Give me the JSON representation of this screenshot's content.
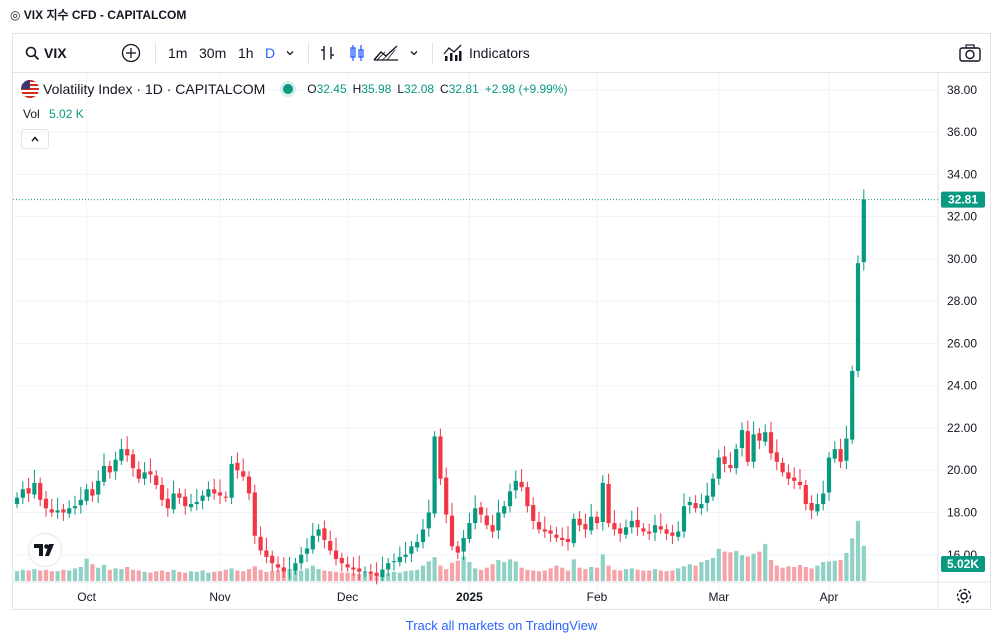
{
  "page": {
    "title": "◎ VIX 지수 CFD - CAPITALCOM",
    "footer_link": "Track all markets on TradingView"
  },
  "toolbar": {
    "search_value": "VIX",
    "intervals": [
      "1m",
      "30m",
      "1h",
      "D"
    ],
    "active_interval": "D",
    "indicators_label": "Indicators"
  },
  "legend": {
    "name": "Volatility Index · 1D · CAPITALCOM",
    "o_label": "O",
    "o_value": "32.45",
    "h_label": "H",
    "h_value": "35.98",
    "l_label": "L",
    "l_value": "32.08",
    "c_label": "C",
    "c_value": "32.81",
    "change": "+2.98 (+9.99%)",
    "vol_label": "Vol",
    "vol_value": "5.02 K"
  },
  "colors": {
    "up": "#089981",
    "down": "#f23645",
    "vol_up": "#8fd1c4",
    "vol_down": "#f5a3a8",
    "accent": "#2962ff"
  },
  "chart_data": {
    "type": "candlestick",
    "y_ticks": [
      "16.00",
      "18.00",
      "20.00",
      "22.00",
      "24.00",
      "26.00",
      "28.00",
      "30.00",
      "32.00",
      "34.00",
      "36.00",
      "38.00"
    ],
    "ylim": [
      14.9,
      38.8
    ],
    "x_ticks": [
      "Oct",
      "Nov",
      "Dec",
      "2025",
      "Feb",
      "Mar",
      "Apr"
    ],
    "last_price_label": "32.81",
    "last_volume_label": "5.02K",
    "closes": [
      18.7,
      19.1,
      18.9,
      19.4,
      18.6,
      18.2,
      18.0,
      18.1,
      18.0,
      18.2,
      18.3,
      18.6,
      19.1,
      18.8,
      19.5,
      20.2,
      19.9,
      20.5,
      21.0,
      20.7,
      20.1,
      19.6,
      19.9,
      19.8,
      19.3,
      18.6,
      18.2,
      18.9,
      18.7,
      18.3,
      18.4,
      18.5,
      18.8,
      19.1,
      18.9,
      18.8,
      18.7,
      20.3,
      20.0,
      19.7,
      18.9,
      16.9,
      16.2,
      15.9,
      15.6,
      15.4,
      15.2,
      15.3,
      15.6,
      16.0,
      16.3,
      16.9,
      17.2,
      16.7,
      16.2,
      15.8,
      15.6,
      15.4,
      15.3,
      15.2,
      15.2,
      15.1,
      15.0,
      15.3,
      15.6,
      15.7,
      15.9,
      16.0,
      16.4,
      16.6,
      17.2,
      18.0,
      21.6,
      19.6,
      17.9,
      16.4,
      16.1,
      16.8,
      17.5,
      18.2,
      17.9,
      17.4,
      17.1,
      18.0,
      18.3,
      19.0,
      19.5,
      19.2,
      18.3,
      17.6,
      17.2,
      17.1,
      17.0,
      16.8,
      16.7,
      16.6,
      17.7,
      17.4,
      17.2,
      17.8,
      17.5,
      19.4,
      17.5,
      17.2,
      17.0,
      17.3,
      17.6,
      17.3,
      17.1,
      17.0,
      17.4,
      17.2,
      17.0,
      16.9,
      17.1,
      18.3,
      18.5,
      18.2,
      18.4,
      18.8,
      19.6,
      20.6,
      20.3,
      20.1,
      21.0,
      21.9,
      20.4,
      21.7,
      21.4,
      21.8,
      20.8,
      20.4,
      19.9,
      19.6,
      19.5,
      19.3,
      18.4,
      18.1,
      18.4,
      18.9,
      20.6,
      21.0,
      20.4,
      21.5,
      24.7,
      29.8,
      32.81
    ],
    "volumes": [
      1.4,
      1.6,
      1.5,
      1.7,
      1.5,
      1.6,
      1.4,
      1.4,
      1.6,
      1.5,
      1.8,
      2.0,
      3.2,
      2.4,
      1.9,
      2.3,
      1.6,
      1.8,
      1.7,
      2.0,
      1.6,
      1.5,
      1.3,
      1.2,
      1.4,
      1.5,
      1.3,
      1.6,
      1.3,
      1.2,
      1.4,
      1.3,
      1.5,
      1.2,
      1.3,
      1.4,
      1.6,
      1.8,
      1.5,
      1.4,
      1.7,
      2.1,
      1.6,
      1.3,
      1.4,
      1.5,
      1.3,
      1.4,
      1.6,
      1.5,
      1.8,
      2.2,
      1.7,
      1.5,
      1.4,
      1.3,
      1.2,
      1.2,
      1.1,
      1.0,
      1.1,
      1.0,
      1.0,
      1.2,
      1.1,
      1.3,
      1.2,
      1.4,
      1.5,
      1.6,
      2.2,
      2.8,
      3.4,
      2.2,
      1.7,
      2.6,
      2.9,
      3.5,
      2.7,
      1.8,
      1.6,
      1.9,
      2.4,
      3.0,
      2.7,
      3.1,
      2.8,
      1.9,
      1.6,
      1.5,
      1.4,
      1.5,
      1.8,
      2.2,
      1.9,
      1.5,
      3.1,
      1.9,
      1.7,
      2.0,
      1.9,
      3.8,
      2.2,
      1.6,
      1.5,
      1.7,
      1.8,
      1.6,
      1.5,
      1.5,
      1.7,
      1.5,
      1.4,
      1.5,
      1.8,
      2.1,
      2.4,
      2.2,
      2.7,
      3.0,
      3.3,
      4.6,
      4.2,
      4.1,
      4.3,
      3.7,
      3.5,
      3.9,
      4.2,
      5.3,
      3.0,
      2.2,
      1.9,
      2.1,
      2.0,
      2.3,
      2.0,
      1.8,
      2.2,
      2.7,
      2.8,
      2.9,
      3.0,
      4.0,
      6.1,
      8.6,
      5.02
    ]
  }
}
